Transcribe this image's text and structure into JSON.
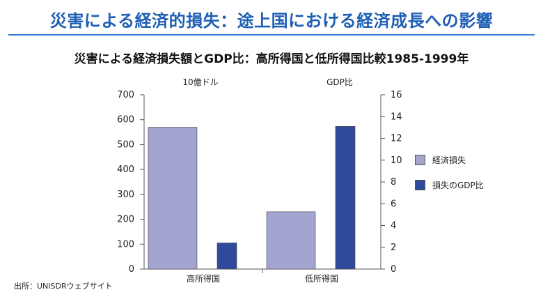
{
  "slide_title": "災害による経済的損失：途上国における経済成長への影響",
  "source": "出所：UNISDRウェブサイト",
  "colors": {
    "title": "#1f5fb4",
    "series_loss": "#a3a5d0",
    "series_ratio": "#2f4a9a"
  },
  "chart_data": {
    "type": "bar",
    "title": "災害による経済損失額とGDP比：高所得国と低所得国比較1985-1999年",
    "categories": [
      "高所得国",
      "低所得国"
    ],
    "y_left": {
      "unit_label": "10億ドル",
      "ylim": [
        0,
        700
      ],
      "ticks": [
        0,
        100,
        200,
        300,
        400,
        500,
        600,
        700
      ]
    },
    "y_right": {
      "unit_label": "GDP比",
      "ylim": [
        0,
        16
      ],
      "ticks": [
        0,
        2,
        4,
        6,
        8,
        10,
        12,
        14,
        16
      ]
    },
    "series": [
      {
        "name": "経済損失",
        "axis": "left",
        "values": [
          570,
          230
        ],
        "color": "#a3a5d0"
      },
      {
        "name": "損失のGDP比",
        "axis": "right",
        "values": [
          2.4,
          13.1
        ],
        "color": "#2f4a9a"
      }
    ],
    "grid": false,
    "legend": "right"
  }
}
